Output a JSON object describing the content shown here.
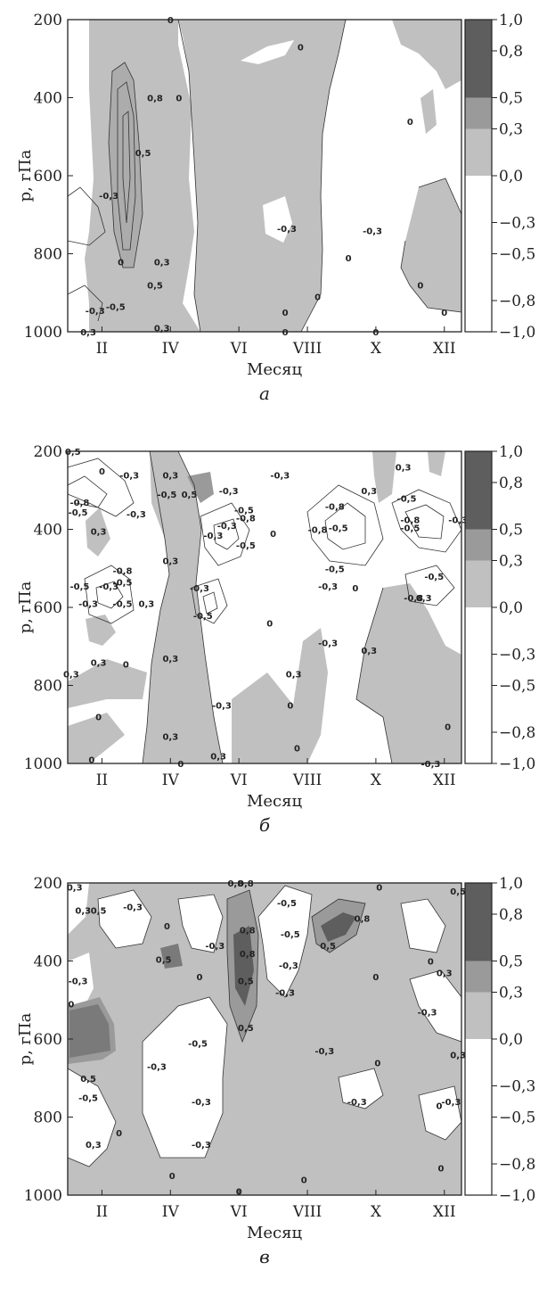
{
  "colors": {
    "white": "#ffffff",
    "light": "#c0c0c0",
    "mid": "#9a9a9a",
    "dark": "#5e5e5e"
  },
  "chart_data": [
    {
      "type": "heatmap",
      "panel": "а",
      "xlabel": "Месяц",
      "ylabel": "p, гПа",
      "x_tick_labels": [
        "II",
        "IV",
        "VI",
        "VIII",
        "X",
        "XII"
      ],
      "x_tick_months": [
        2,
        4,
        6,
        8,
        10,
        12
      ],
      "y_ticks": [
        200,
        400,
        600,
        800,
        1000
      ],
      "ylim": [
        1000,
        200
      ],
      "xlim": [
        1,
        12.5
      ],
      "colorbar": {
        "levels": [
          1.0,
          0.8,
          0.5,
          0.3,
          0.0,
          -0.3,
          -0.5,
          -0.8,
          -1.0
        ],
        "tick_labels": [
          "1,0",
          "0,8",
          "0,5",
          "0,3",
          "0,0",
          "−0,3",
          "−0,5",
          "−0,8",
          "−1,0"
        ]
      },
      "contour_labels": [
        {
          "month": 4.0,
          "p": 200,
          "text": "0"
        },
        {
          "month": 3.55,
          "p": 400,
          "text": "0,8"
        },
        {
          "month": 3.2,
          "p": 540,
          "text": "0,5"
        },
        {
          "month": 2.2,
          "p": 650,
          "text": "-0,3"
        },
        {
          "month": 2.55,
          "p": 820,
          "text": "0"
        },
        {
          "month": 3.75,
          "p": 820,
          "text": "0,3"
        },
        {
          "month": 3.55,
          "p": 880,
          "text": "0,5"
        },
        {
          "month": 2.4,
          "p": 935,
          "text": "-0,5"
        },
        {
          "month": 1.8,
          "p": 945,
          "text": "-0,3"
        },
        {
          "month": 1.6,
          "p": 1000,
          "text": "0,3"
        },
        {
          "month": 3.75,
          "p": 990,
          "text": "0,3"
        },
        {
          "month": 4.25,
          "p": 400,
          "text": "0"
        },
        {
          "month": 7.8,
          "p": 270,
          "text": "0"
        },
        {
          "month": 7.4,
          "p": 735,
          "text": "-0,3"
        },
        {
          "month": 7.35,
          "p": 950,
          "text": "0"
        },
        {
          "month": 7.35,
          "p": 1000,
          "text": "0"
        },
        {
          "month": 8.3,
          "p": 910,
          "text": "0"
        },
        {
          "month": 9.2,
          "p": 810,
          "text": "0"
        },
        {
          "month": 9.9,
          "p": 740,
          "text": "-0,3"
        },
        {
          "month": 11.0,
          "p": 460,
          "text": "0"
        },
        {
          "month": 11.3,
          "p": 880,
          "text": "0"
        },
        {
          "month": 12.0,
          "p": 950,
          "text": "0"
        },
        {
          "month": 10.0,
          "p": 1000,
          "text": "0"
        }
      ]
    },
    {
      "type": "heatmap",
      "panel": "б",
      "xlabel": "Месяц",
      "ylabel": "p, гПа",
      "x_tick_labels": [
        "II",
        "IV",
        "VI",
        "VIII",
        "X",
        "XII"
      ],
      "x_tick_months": [
        2,
        4,
        6,
        8,
        10,
        12
      ],
      "y_ticks": [
        200,
        400,
        600,
        800,
        1000
      ],
      "ylim": [
        1000,
        200
      ],
      "xlim": [
        1,
        12.5
      ],
      "colorbar": {
        "levels": [
          1.0,
          0.8,
          0.5,
          0.3,
          0.0,
          -0.3,
          -0.5,
          -0.8,
          -1.0
        ],
        "tick_labels": [
          "1,0",
          "0,8",
          "0,5",
          "0,3",
          "0,0",
          "−0,3",
          "−0,5",
          "−0,8",
          "−1,0"
        ]
      },
      "contour_labels": [
        {
          "month": 1.15,
          "p": 200,
          "text": "0,5"
        },
        {
          "month": 2.0,
          "p": 250,
          "text": "0"
        },
        {
          "month": 2.8,
          "p": 260,
          "text": "-0,3"
        },
        {
          "month": 1.35,
          "p": 330,
          "text": "-0,8"
        },
        {
          "month": 1.3,
          "p": 355,
          "text": "-0,5"
        },
        {
          "month": 1.9,
          "p": 405,
          "text": "0,3"
        },
        {
          "month": 4.0,
          "p": 260,
          "text": "0,3"
        },
        {
          "month": 3.9,
          "p": 310,
          "text": "-0,5"
        },
        {
          "month": 4.55,
          "p": 310,
          "text": "0,5"
        },
        {
          "month": 3.0,
          "p": 360,
          "text": "-0,3"
        },
        {
          "month": 4.0,
          "p": 480,
          "text": "0,3"
        },
        {
          "month": 2.6,
          "p": 505,
          "text": "-0,8"
        },
        {
          "month": 2.6,
          "p": 535,
          "text": "-0,5"
        },
        {
          "month": 2.2,
          "p": 545,
          "text": "-0,3"
        },
        {
          "month": 1.35,
          "p": 545,
          "text": "-0,5"
        },
        {
          "month": 1.6,
          "p": 590,
          "text": "-0,3"
        },
        {
          "month": 2.6,
          "p": 590,
          "text": "-0,5"
        },
        {
          "month": 3.3,
          "p": 590,
          "text": "0,3"
        },
        {
          "month": 4.85,
          "p": 550,
          "text": "-0,3"
        },
        {
          "month": 4.95,
          "p": 620,
          "text": "-0,5"
        },
        {
          "month": 5.7,
          "p": 300,
          "text": "-0,3"
        },
        {
          "month": 6.15,
          "p": 350,
          "text": "-0,5"
        },
        {
          "month": 6.2,
          "p": 370,
          "text": "-0,8"
        },
        {
          "month": 5.65,
          "p": 390,
          "text": "-0,3"
        },
        {
          "month": 6.2,
          "p": 440,
          "text": "-0,5"
        },
        {
          "month": 5.25,
          "p": 415,
          "text": "-0,3"
        },
        {
          "month": 7.0,
          "p": 410,
          "text": "0"
        },
        {
          "month": 7.2,
          "p": 260,
          "text": "-0,3"
        },
        {
          "month": 6.9,
          "p": 640,
          "text": "0"
        },
        {
          "month": 1.9,
          "p": 740,
          "text": "0,3"
        },
        {
          "month": 2.7,
          "p": 745,
          "text": "0"
        },
        {
          "month": 1.1,
          "p": 770,
          "text": "0,3"
        },
        {
          "month": 4.0,
          "p": 730,
          "text": "0,3"
        },
        {
          "month": 5.5,
          "p": 850,
          "text": "-0,3"
        },
        {
          "month": 7.6,
          "p": 770,
          "text": "0,3"
        },
        {
          "month": 7.5,
          "p": 850,
          "text": "0"
        },
        {
          "month": 1.9,
          "p": 880,
          "text": "0"
        },
        {
          "month": 4.0,
          "p": 930,
          "text": "0,3"
        },
        {
          "month": 5.4,
          "p": 980,
          "text": "0,3"
        },
        {
          "month": 4.3,
          "p": 1000,
          "text": "0"
        },
        {
          "month": 1.7,
          "p": 990,
          "text": "0"
        },
        {
          "month": 7.7,
          "p": 960,
          "text": "0"
        },
        {
          "month": 8.8,
          "p": 340,
          "text": "-0,8"
        },
        {
          "month": 8.3,
          "p": 400,
          "text": "-0,8"
        },
        {
          "month": 8.9,
          "p": 395,
          "text": "-0,5"
        },
        {
          "month": 9.8,
          "p": 300,
          "text": "0,3"
        },
        {
          "month": 8.8,
          "p": 500,
          "text": "-0,5"
        },
        {
          "month": 8.6,
          "p": 545,
          "text": "-0,3"
        },
        {
          "month": 9.4,
          "p": 550,
          "text": "0"
        },
        {
          "month": 8.6,
          "p": 690,
          "text": "-0,3"
        },
        {
          "month": 9.8,
          "p": 710,
          "text": "0,3"
        },
        {
          "month": 10.8,
          "p": 240,
          "text": "0,3"
        },
        {
          "month": 10.9,
          "p": 320,
          "text": "-0,5"
        },
        {
          "month": 11.0,
          "p": 375,
          "text": "-0,8"
        },
        {
          "month": 11.0,
          "p": 395,
          "text": "-0,5"
        },
        {
          "month": 12.4,
          "p": 375,
          "text": "-0,3"
        },
        {
          "month": 11.7,
          "p": 520,
          "text": "-0,5"
        },
        {
          "month": 11.1,
          "p": 575,
          "text": "-0,8"
        },
        {
          "month": 11.4,
          "p": 575,
          "text": "0,3"
        },
        {
          "month": 12.1,
          "p": 905,
          "text": "0"
        },
        {
          "month": 11.6,
          "p": 1000,
          "text": "-0,3"
        }
      ]
    },
    {
      "type": "heatmap",
      "panel": "в",
      "xlabel": "Месяц",
      "ylabel": "p, гПа",
      "x_tick_labels": [
        "II",
        "IV",
        "VI",
        "VIII",
        "X",
        "XII"
      ],
      "x_tick_months": [
        2,
        4,
        6,
        8,
        10,
        12
      ],
      "y_ticks": [
        200,
        400,
        600,
        800,
        1000
      ],
      "ylim": [
        1000,
        200
      ],
      "xlim": [
        1,
        12.5
      ],
      "colorbar": {
        "levels": [
          1.0,
          0.8,
          0.5,
          0.3,
          0.0,
          -0.3,
          -0.5,
          -0.8,
          -1.0
        ],
        "tick_labels": [
          "1,0",
          "0,8",
          "0,5",
          "0,3",
          "0,0",
          "−0,3",
          "−0,5",
          "−0,8",
          "−1,0"
        ]
      },
      "contour_labels": [
        {
          "month": 1.2,
          "p": 210,
          "text": "0,3"
        },
        {
          "month": 1.45,
          "p": 270,
          "text": "0,3"
        },
        {
          "month": 1.9,
          "p": 270,
          "text": "0,5"
        },
        {
          "month": 2.9,
          "p": 260,
          "text": "-0,3"
        },
        {
          "month": 3.9,
          "p": 310,
          "text": "0"
        },
        {
          "month": 3.8,
          "p": 395,
          "text": "0,5"
        },
        {
          "month": 5.3,
          "p": 360,
          "text": "-0,3"
        },
        {
          "month": 4.85,
          "p": 440,
          "text": "0"
        },
        {
          "month": 1.3,
          "p": 450,
          "text": "-0,3"
        },
        {
          "month": 1.1,
          "p": 510,
          "text": "0"
        },
        {
          "month": 5.9,
          "p": 200,
          "text": "0,8"
        },
        {
          "month": 6.2,
          "p": 200,
          "text": "0,8"
        },
        {
          "month": 6.25,
          "p": 320,
          "text": "0,8"
        },
        {
          "month": 6.25,
          "p": 380,
          "text": "0,8"
        },
        {
          "month": 6.2,
          "p": 450,
          "text": "0,5"
        },
        {
          "month": 6.2,
          "p": 570,
          "text": "0,5"
        },
        {
          "month": 7.4,
          "p": 250,
          "text": "-0,5"
        },
        {
          "month": 7.5,
          "p": 330,
          "text": "-0,5"
        },
        {
          "month": 7.45,
          "p": 410,
          "text": "-0,3"
        },
        {
          "month": 7.35,
          "p": 480,
          "text": "-0,3"
        },
        {
          "month": 8.6,
          "p": 360,
          "text": "0,5"
        },
        {
          "month": 9.6,
          "p": 290,
          "text": "0,8"
        },
        {
          "month": 10.1,
          "p": 210,
          "text": "0"
        },
        {
          "month": 10.0,
          "p": 440,
          "text": "0"
        },
        {
          "month": 8.5,
          "p": 630,
          "text": "-0,3"
        },
        {
          "month": 4.8,
          "p": 610,
          "text": "-0,5"
        },
        {
          "month": 3.6,
          "p": 670,
          "text": "-0,3"
        },
        {
          "month": 4.9,
          "p": 760,
          "text": "-0,3"
        },
        {
          "month": 4.9,
          "p": 870,
          "text": "-0,3"
        },
        {
          "month": 1.6,
          "p": 700,
          "text": "0,5"
        },
        {
          "month": 1.6,
          "p": 750,
          "text": "-0,5"
        },
        {
          "month": 2.5,
          "p": 840,
          "text": "0"
        },
        {
          "month": 1.75,
          "p": 870,
          "text": "0,3"
        },
        {
          "month": 4.05,
          "p": 950,
          "text": "0"
        },
        {
          "month": 6.0,
          "p": 990,
          "text": "0"
        },
        {
          "month": 7.9,
          "p": 960,
          "text": "0"
        },
        {
          "month": 9.45,
          "p": 760,
          "text": "-0,3"
        },
        {
          "month": 10.05,
          "p": 660,
          "text": "0"
        },
        {
          "month": 11.5,
          "p": 530,
          "text": "-0,3"
        },
        {
          "month": 12.0,
          "p": 430,
          "text": "0,3"
        },
        {
          "month": 11.6,
          "p": 400,
          "text": "0"
        },
        {
          "month": 12.2,
          "p": 760,
          "text": "-0,3"
        },
        {
          "month": 11.85,
          "p": 770,
          "text": "0"
        },
        {
          "month": 12.4,
          "p": 640,
          "text": "0,3"
        },
        {
          "month": 11.9,
          "p": 930,
          "text": "0"
        },
        {
          "month": 12.4,
          "p": 220,
          "text": "0,5"
        }
      ]
    }
  ]
}
